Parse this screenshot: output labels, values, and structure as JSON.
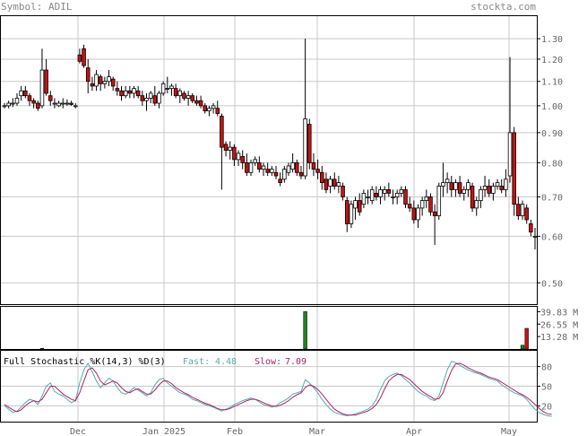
{
  "header": {
    "symbol_label": "Symbol: ADIL",
    "site": "stockta.com"
  },
  "colors": {
    "up": "#ffffff",
    "down": "#cc1111",
    "candle_edge": "#000000",
    "volume": "#1a8a1a",
    "fast": "#55aaaa",
    "slow": "#aa2266",
    "grid": "#c8c8c8"
  },
  "chart_data": [
    {
      "type": "candlestick",
      "title": "",
      "y_scale": "log",
      "ylim": [
        0.46,
        1.42
      ],
      "y_ticks": [
        "1.30",
        "1.20",
        "1.10",
        "1.00",
        "0.90",
        "0.80",
        "0.70",
        "0.60",
        "0.50"
      ],
      "x_labels": [
        "Dec",
        "Jan 2025",
        "Feb",
        "Mar",
        "Apr",
        "May"
      ],
      "ohlc": [
        [
          1.0,
          1.01,
          0.99,
          1.0
        ],
        [
          1.0,
          1.02,
          0.99,
          1.01
        ],
        [
          1.01,
          1.03,
          0.995,
          1.01
        ],
        [
          1.01,
          1.05,
          1.0,
          1.03
        ],
        [
          1.04,
          1.08,
          1.02,
          1.06
        ],
        [
          1.06,
          1.08,
          1.03,
          1.04
        ],
        [
          1.04,
          1.05,
          1.0,
          1.02
        ],
        [
          1.02,
          1.03,
          0.99,
          1.01
        ],
        [
          1.01,
          1.02,
          0.98,
          0.99
        ],
        [
          1.0,
          1.25,
          0.99,
          1.15
        ],
        [
          1.15,
          1.2,
          1.04,
          1.05
        ],
        [
          1.04,
          1.06,
          1.0,
          1.02
        ],
        [
          1.01,
          1.03,
          0.99,
          1.01
        ],
        [
          1.0,
          1.02,
          0.995,
          1.01
        ],
        [
          1.01,
          1.03,
          0.99,
          1.01
        ],
        [
          1.01,
          1.025,
          1.0,
          1.01
        ],
        [
          1.01,
          1.02,
          1.0,
          1.005
        ],
        [
          1.0,
          1.01,
          0.99,
          1.0
        ],
        [
          1.22,
          1.25,
          1.18,
          1.19
        ],
        [
          1.25,
          1.27,
          1.16,
          1.17
        ],
        [
          1.16,
          1.2,
          1.05,
          1.1
        ],
        [
          1.09,
          1.12,
          1.06,
          1.08
        ],
        [
          1.08,
          1.15,
          1.06,
          1.13
        ],
        [
          1.12,
          1.13,
          1.06,
          1.09
        ],
        [
          1.09,
          1.12,
          1.07,
          1.1
        ],
        [
          1.1,
          1.15,
          1.08,
          1.12
        ],
        [
          1.11,
          1.12,
          1.06,
          1.08
        ],
        [
          1.07,
          1.1,
          1.04,
          1.06
        ],
        [
          1.06,
          1.08,
          1.02,
          1.04
        ],
        [
          1.04,
          1.08,
          1.03,
          1.06
        ],
        [
          1.06,
          1.08,
          1.03,
          1.05
        ],
        [
          1.05,
          1.08,
          1.03,
          1.07
        ],
        [
          1.06,
          1.08,
          1.03,
          1.04
        ],
        [
          1.04,
          1.06,
          1.0,
          1.02
        ],
        [
          1.02,
          1.05,
          0.98,
          1.03
        ],
        [
          1.03,
          1.06,
          1.01,
          1.05
        ],
        [
          1.04,
          1.08,
          1.0,
          1.01
        ],
        [
          1.01,
          1.06,
          0.99,
          1.05
        ],
        [
          1.05,
          1.1,
          1.04,
          1.09
        ],
        [
          1.07,
          1.12,
          1.05,
          1.07
        ],
        [
          1.07,
          1.09,
          1.04,
          1.08
        ],
        [
          1.07,
          1.09,
          1.03,
          1.04
        ],
        [
          1.04,
          1.07,
          1.01,
          1.06
        ],
        [
          1.05,
          1.06,
          1.02,
          1.03
        ],
        [
          1.03,
          1.06,
          1.0,
          1.04
        ],
        [
          1.04,
          1.05,
          1.01,
          1.02
        ],
        [
          1.02,
          1.04,
          1.0,
          1.01
        ],
        [
          1.02,
          1.04,
          0.99,
          1.0
        ],
        [
          1.0,
          1.01,
          0.97,
          0.98
        ],
        [
          0.98,
          1.0,
          0.96,
          0.99
        ],
        [
          0.99,
          1.01,
          0.97,
          1.0
        ],
        [
          0.99,
          1.02,
          0.96,
          0.97
        ],
        [
          0.96,
          0.97,
          0.72,
          0.85
        ],
        [
          0.86,
          0.87,
          0.82,
          0.84
        ],
        [
          0.84,
          0.87,
          0.81,
          0.85
        ],
        [
          0.85,
          0.86,
          0.79,
          0.81
        ],
        [
          0.81,
          0.84,
          0.79,
          0.83
        ],
        [
          0.82,
          0.84,
          0.78,
          0.8
        ],
        [
          0.8,
          0.83,
          0.76,
          0.77
        ],
        [
          0.77,
          0.81,
          0.76,
          0.8
        ],
        [
          0.8,
          0.82,
          0.79,
          0.81
        ],
        [
          0.8,
          0.82,
          0.77,
          0.78
        ],
        [
          0.78,
          0.8,
          0.76,
          0.79
        ],
        [
          0.78,
          0.8,
          0.76,
          0.77
        ],
        [
          0.77,
          0.79,
          0.76,
          0.78
        ],
        [
          0.77,
          0.79,
          0.75,
          0.76
        ],
        [
          0.75,
          0.77,
          0.73,
          0.74
        ],
        [
          0.75,
          0.79,
          0.74,
          0.78
        ],
        [
          0.77,
          0.8,
          0.76,
          0.79
        ],
        [
          0.78,
          0.83,
          0.77,
          0.8
        ],
        [
          0.8,
          0.81,
          0.76,
          0.77
        ],
        [
          0.77,
          0.79,
          0.75,
          0.76
        ],
        [
          0.76,
          1.3,
          0.75,
          0.95
        ],
        [
          0.93,
          0.95,
          0.78,
          0.8
        ],
        [
          0.8,
          0.83,
          0.76,
          0.78
        ],
        [
          0.78,
          0.81,
          0.75,
          0.77
        ],
        [
          0.77,
          0.79,
          0.72,
          0.74
        ],
        [
          0.75,
          0.77,
          0.71,
          0.72
        ],
        [
          0.73,
          0.76,
          0.71,
          0.75
        ],
        [
          0.75,
          0.77,
          0.72,
          0.73
        ],
        [
          0.73,
          0.76,
          0.71,
          0.74
        ],
        [
          0.73,
          0.74,
          0.69,
          0.7
        ],
        [
          0.69,
          0.7,
          0.61,
          0.63
        ],
        [
          0.63,
          0.69,
          0.62,
          0.68
        ],
        [
          0.67,
          0.7,
          0.64,
          0.69
        ],
        [
          0.69,
          0.71,
          0.65,
          0.66
        ],
        [
          0.68,
          0.72,
          0.67,
          0.71
        ],
        [
          0.7,
          0.72,
          0.68,
          0.7
        ],
        [
          0.69,
          0.73,
          0.68,
          0.72
        ],
        [
          0.71,
          0.73,
          0.69,
          0.7
        ],
        [
          0.7,
          0.73,
          0.68,
          0.72
        ],
        [
          0.71,
          0.73,
          0.69,
          0.72
        ],
        [
          0.72,
          0.74,
          0.7,
          0.71
        ],
        [
          0.7,
          0.72,
          0.68,
          0.7
        ],
        [
          0.7,
          0.72,
          0.68,
          0.71
        ],
        [
          0.71,
          0.73,
          0.7,
          0.72
        ],
        [
          0.72,
          0.73,
          0.67,
          0.68
        ],
        [
          0.68,
          0.7,
          0.66,
          0.67
        ],
        [
          0.67,
          0.69,
          0.63,
          0.64
        ],
        [
          0.64,
          0.68,
          0.62,
          0.67
        ],
        [
          0.67,
          0.7,
          0.65,
          0.69
        ],
        [
          0.69,
          0.72,
          0.67,
          0.7
        ],
        [
          0.7,
          0.71,
          0.65,
          0.66
        ],
        [
          0.66,
          0.68,
          0.58,
          0.65
        ],
        [
          0.65,
          0.74,
          0.64,
          0.73
        ],
        [
          0.73,
          0.8,
          0.7,
          0.74
        ],
        [
          0.74,
          0.77,
          0.71,
          0.75
        ],
        [
          0.74,
          0.76,
          0.7,
          0.72
        ],
        [
          0.72,
          0.75,
          0.7,
          0.74
        ],
        [
          0.74,
          0.76,
          0.7,
          0.71
        ],
        [
          0.71,
          0.73,
          0.69,
          0.72
        ],
        [
          0.72,
          0.75,
          0.7,
          0.74
        ],
        [
          0.73,
          0.74,
          0.66,
          0.67
        ],
        [
          0.67,
          0.7,
          0.65,
          0.69
        ],
        [
          0.69,
          0.73,
          0.67,
          0.72
        ],
        [
          0.72,
          0.76,
          0.7,
          0.73
        ],
        [
          0.73,
          0.75,
          0.7,
          0.71
        ],
        [
          0.71,
          0.74,
          0.69,
          0.73
        ],
        [
          0.73,
          0.75,
          0.72,
          0.74
        ],
        [
          0.73,
          0.75,
          0.71,
          0.72
        ],
        [
          0.72,
          0.78,
          0.7,
          0.75
        ],
        [
          0.76,
          1.21,
          0.74,
          0.9
        ],
        [
          0.9,
          0.92,
          0.65,
          0.68
        ],
        [
          0.68,
          0.7,
          0.64,
          0.65
        ],
        [
          0.65,
          0.69,
          0.64,
          0.68
        ],
        [
          0.67,
          0.68,
          0.63,
          0.64
        ],
        [
          0.63,
          0.64,
          0.6,
          0.61
        ],
        [
          0.6,
          0.62,
          0.57,
          0.6
        ]
      ],
      "volume_panel": {
        "y_ticks": [
          "39.83 M",
          "26.55 M",
          "13.28 M"
        ],
        "ylim": [
          0,
          45
        ],
        "volumes": [
          0,
          0,
          0,
          0,
          0,
          0,
          0,
          0,
          0,
          0.6,
          0,
          0,
          0,
          0,
          0,
          0,
          0,
          0,
          0,
          0,
          0,
          0,
          0,
          0,
          0,
          0,
          0,
          0,
          0,
          0,
          0,
          0,
          0,
          0,
          0,
          0,
          0,
          0,
          0,
          0,
          0,
          0,
          0,
          0,
          0,
          0,
          0,
          0,
          0,
          0,
          0,
          0,
          0,
          0,
          0,
          0,
          0,
          0,
          0,
          0,
          0,
          0,
          0,
          0,
          0,
          0,
          0,
          0,
          0,
          0,
          0,
          0,
          39.8,
          0,
          0,
          0,
          0,
          0,
          0,
          0,
          0,
          0,
          0,
          0,
          0,
          0,
          0,
          0,
          0,
          0,
          0,
          0,
          0,
          0,
          0,
          0,
          0,
          0,
          0,
          0,
          0,
          0,
          0,
          0,
          0,
          0,
          0,
          0,
          0,
          0,
          0,
          0,
          0,
          0,
          0,
          0,
          0,
          0,
          0,
          0,
          0,
          0,
          0,
          0,
          4.0,
          22.0,
          0,
          0,
          0,
          0,
          0,
          0
        ]
      }
    },
    {
      "type": "line",
      "title": "Full Stochastic %K(14,3) %D(3)",
      "legend": [
        {
          "label": "Fast:",
          "value": "4.48"
        },
        {
          "label": "Slow:",
          "value": "7.09"
        }
      ],
      "y_ticks": [
        "80",
        "50",
        "20"
      ],
      "ylim": [
        0,
        100
      ],
      "series": [
        {
          "name": "Fast",
          "values": [
            20,
            15,
            10,
            12,
            18,
            25,
            30,
            28,
            22,
            35,
            50,
            55,
            42,
            38,
            35,
            30,
            25,
            28,
            55,
            75,
            85,
            72,
            58,
            48,
            55,
            62,
            58,
            48,
            40,
            38,
            42,
            48,
            44,
            40,
            35,
            40,
            52,
            60,
            62,
            55,
            50,
            45,
            40,
            38,
            35,
            30,
            28,
            25,
            22,
            20,
            18,
            15,
            12,
            15,
            18,
            22,
            25,
            28,
            30,
            32,
            30,
            26,
            22,
            20,
            18,
            20,
            25,
            28,
            32,
            38,
            40,
            42,
            60,
            55,
            48,
            40,
            30,
            22,
            15,
            10,
            8,
            6,
            5,
            6,
            8,
            10,
            12,
            15,
            20,
            30,
            45,
            58,
            65,
            68,
            70,
            66,
            60,
            55,
            48,
            42,
            38,
            35,
            30,
            28,
            35,
            55,
            75,
            88,
            86,
            82,
            78,
            75,
            72,
            70,
            68,
            65,
            62,
            60,
            58,
            52,
            48,
            44,
            40,
            38,
            35,
            30,
            22,
            15,
            10,
            7,
            5,
            4
          ]
        },
        {
          "name": "Slow",
          "values": [
            22,
            18,
            14,
            11,
            14,
            20,
            25,
            28,
            26,
            30,
            40,
            50,
            50,
            44,
            38,
            34,
            30,
            28,
            40,
            58,
            75,
            78,
            70,
            58,
            52,
            55,
            58,
            55,
            48,
            42,
            40,
            44,
            46,
            42,
            38,
            38,
            44,
            52,
            58,
            58,
            54,
            48,
            44,
            40,
            37,
            33,
            30,
            27,
            24,
            22,
            19,
            16,
            14,
            14,
            16,
            19,
            22,
            25,
            28,
            30,
            30,
            28,
            25,
            22,
            20,
            19,
            21,
            24,
            28,
            33,
            37,
            40,
            48,
            52,
            50,
            45,
            38,
            30,
            22,
            15,
            11,
            8,
            6,
            6,
            6,
            8,
            10,
            12,
            16,
            22,
            32,
            46,
            58,
            64,
            68,
            68,
            64,
            60,
            54,
            48,
            42,
            38,
            34,
            30,
            31,
            40,
            58,
            74,
            84,
            85,
            82,
            78,
            75,
            72,
            70,
            67,
            64,
            62,
            60,
            56,
            52,
            48,
            44,
            40,
            37,
            33,
            28,
            22,
            16,
            11,
            8,
            7
          ]
        }
      ]
    }
  ]
}
